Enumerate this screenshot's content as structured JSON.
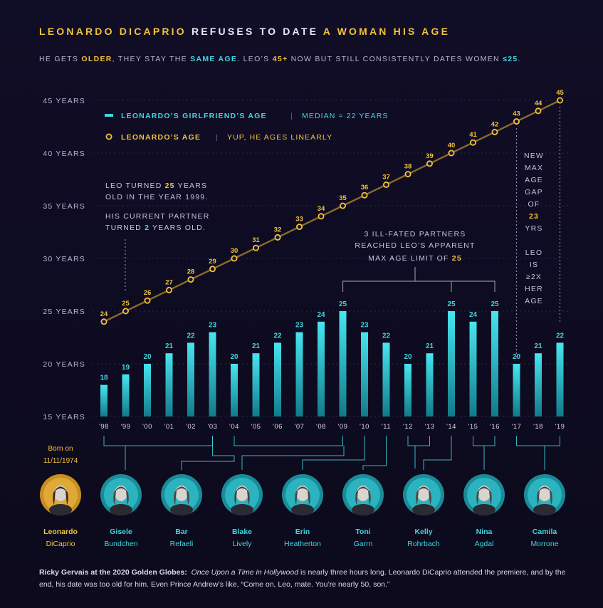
{
  "title": {
    "part1": "LEONARDO DICAPRIO",
    "part2": "REFUSES TO DATE",
    "part3": "A WOMAN HIS AGE"
  },
  "subtitle": {
    "t1": "HE GETS",
    "older": "OLDER",
    "t2": ", THEY STAY THE",
    "same": "SAME AGE",
    "t3": ". LEO’S",
    "age45": "45+",
    "t4": "NOW BUT STILL CONSISTENTLY DATES WOMEN",
    "le25": "≤25",
    "t5": "."
  },
  "legend": {
    "girlfriend_label": "LEONARDO’S GIRLFRIEND’S AGE",
    "girlfriend_note": "MEDIAN = 22 YEARS",
    "leo_label": "LEONARDO’S AGE",
    "leo_note": "YUP, HE AGES LINEARLY"
  },
  "annotations": {
    "leo25": [
      "LEO TURNED",
      "25",
      "YEARS",
      "OLD IN THE YEAR 1999."
    ],
    "partner2": [
      "HIS CURRENT PARTNER",
      "TURNED",
      "2",
      "YEARS OLD."
    ],
    "ill_fated": [
      "3 ILL-FATED PARTNERS",
      "REACHED LEO’S APPARENT",
      "MAX AGE LIMIT OF",
      "25"
    ],
    "new_max": [
      "NEW",
      "MAX",
      "AGE",
      "GAP",
      "OF",
      "23",
      "YRS"
    ],
    "ratio": [
      "LEO",
      "IS",
      "≥2X",
      "HER",
      "AGE"
    ]
  },
  "born": [
    "Born on",
    "11/11/1974"
  ],
  "people": [
    {
      "first": "Leonardo",
      "last": "DiCaprio"
    },
    {
      "first": "Gisele",
      "last": "Bundchen"
    },
    {
      "first": "Bar",
      "last": "Refaeli"
    },
    {
      "first": "Blake",
      "last": "Lively"
    },
    {
      "first": "Erin",
      "last": "Heatherton"
    },
    {
      "first": "Toni",
      "last": "Garrn"
    },
    {
      "first": "Kelly",
      "last": "Rohrbach"
    },
    {
      "first": "Nina",
      "last": "Agdal"
    },
    {
      "first": "Camila",
      "last": "Morrone"
    }
  ],
  "footer": {
    "speaker": "Ricky Gervais at the 2020 Golden Globes:",
    "movie": "Once Upon a Time in Hollywood",
    "text": "is nearly three hours long. Leonardo DiCaprio attended the premiere, and by the end, his date was too old for him.  Even Prince Andrew’s like, “Come on, Leo, mate. You’re nearly 50, son.”"
  },
  "colors": {
    "gold": "#f3c23a",
    "cyan": "#3fd6e0",
    "bg": "#0d0b1f"
  },
  "chart_data": {
    "type": "bar",
    "categories": [
      "'98",
      "'99",
      "'00",
      "'01",
      "'02",
      "'03",
      "'04",
      "'05",
      "'06",
      "'07",
      "'08",
      "'09",
      "'10",
      "'11",
      "'12",
      "'13",
      "'14",
      "'15",
      "'16",
      "'17",
      "'18",
      "'19"
    ],
    "series": [
      {
        "name": "LEONARDO’S GIRLFRIEND’S AGE",
        "type": "bar",
        "values": [
          18,
          19,
          20,
          21,
          22,
          23,
          20,
          21,
          22,
          23,
          24,
          25,
          23,
          22,
          20,
          21,
          25,
          24,
          25,
          20,
          21,
          22
        ]
      },
      {
        "name": "LEONARDO’S AGE",
        "type": "line",
        "values": [
          24,
          25,
          26,
          27,
          28,
          29,
          30,
          31,
          32,
          33,
          34,
          35,
          36,
          37,
          38,
          39,
          40,
          41,
          42,
          43,
          44,
          45
        ]
      }
    ],
    "y_ticks": [
      {
        "v": 15,
        "label": "15 YEARS"
      },
      {
        "v": 20,
        "label": "20 YEARS"
      },
      {
        "v": 25,
        "label": "25 YEARS"
      },
      {
        "v": 30,
        "label": "30 YEARS"
      },
      {
        "v": 35,
        "label": "35 YEARS"
      },
      {
        "v": 40,
        "label": "40 YEARS"
      },
      {
        "v": 45,
        "label": "45 YEARS"
      }
    ],
    "ylim": [
      15,
      45
    ],
    "grid": true
  }
}
